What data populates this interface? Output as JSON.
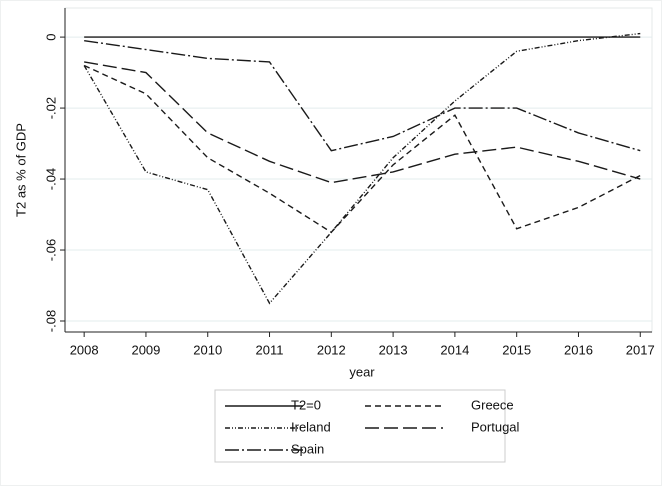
{
  "chart_data": {
    "type": "line",
    "x_label": "year",
    "y_label": "T2 as % of GDP",
    "x": [
      2008,
      2009,
      2010,
      2011,
      2012,
      2013,
      2014,
      2015,
      2016,
      2017
    ],
    "xlim": [
      2007.69,
      2017.19
    ],
    "xticks": [
      2008,
      2009,
      2010,
      2011,
      2012,
      2013,
      2014,
      2015,
      2016,
      2017
    ],
    "ylim": [
      -0.0831,
      0.0082
    ],
    "yticks": [
      {
        "value": -0.08,
        "label": "-.08"
      },
      {
        "value": -0.06,
        "label": "-.06"
      },
      {
        "value": -0.04,
        "label": "-.04"
      },
      {
        "value": -0.02,
        "label": "-.02"
      },
      0
    ],
    "grid": true,
    "legend_position": "bottom",
    "series": [
      {
        "name": "T2=0",
        "color": "#1a1a1a",
        "dash": "none",
        "values": [
          0,
          0,
          0,
          0,
          0,
          0,
          0,
          0,
          0,
          0
        ]
      },
      {
        "name": "Greece",
        "color": "#1a1a1a",
        "dash": "6 4",
        "values": [
          -0.008,
          -0.016,
          -0.034,
          -0.044,
          -0.055,
          -0.036,
          -0.022,
          -0.054,
          -0.048,
          -0.039
        ]
      },
      {
        "name": "Ireland",
        "color": "#1a1a1a",
        "dash": "5 2 1 2 1 2",
        "values": [
          -0.008,
          -0.038,
          -0.043,
          -0.075,
          -0.055,
          -0.034,
          -0.018,
          -0.004,
          -0.001,
          0.001
        ]
      },
      {
        "name": "Portugal",
        "color": "#1a1a1a",
        "dash": "14 5",
        "values": [
          -0.007,
          -0.01,
          -0.027,
          -0.035,
          -0.041,
          -0.038,
          -0.033,
          -0.031,
          -0.035,
          -0.04
        ]
      },
      {
        "name": "Spain",
        "color": "#1a1a1a",
        "dash": "14 3 2 3",
        "values": [
          -0.001,
          -0.0035,
          -0.006,
          -0.007,
          -0.032,
          -0.028,
          -0.02,
          -0.02,
          -0.027,
          -0.032
        ]
      }
    ]
  }
}
